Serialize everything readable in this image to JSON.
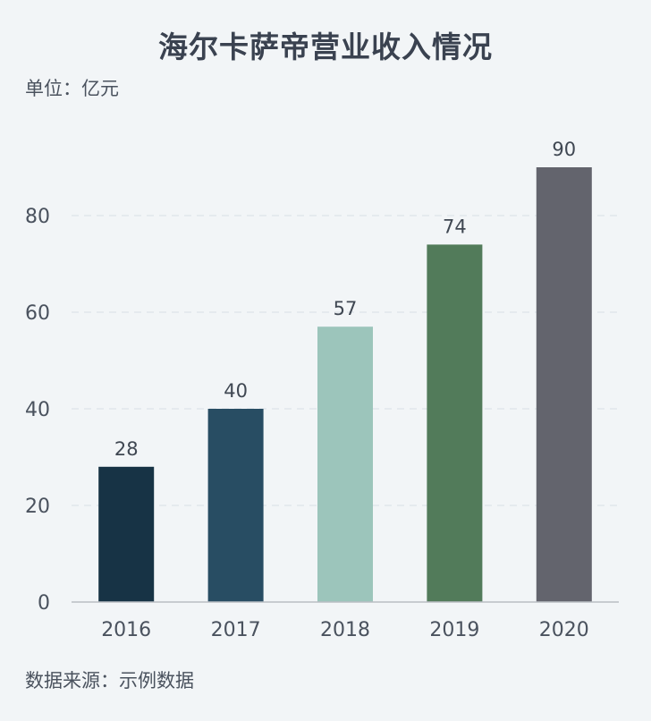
{
  "header": {
    "title": "海尔卡萨帝营业收入情况",
    "unit": "单位：亿元"
  },
  "footer": {
    "source": "数据来源：示例数据"
  },
  "chart_data": {
    "type": "bar",
    "title": "海尔卡萨帝营业收入情况",
    "xlabel": "",
    "ylabel": "",
    "categories": [
      "2016",
      "2017",
      "2018",
      "2019",
      "2020"
    ],
    "values": [
      28,
      40,
      57,
      74,
      90
    ],
    "colors": [
      "#173345",
      "#284d63",
      "#9cc5bb",
      "#527b5a",
      "#63646d"
    ],
    "ylim": [
      0,
      100
    ],
    "yticks": [
      0,
      20,
      40,
      60,
      80
    ],
    "grid": true,
    "legend": "none"
  }
}
